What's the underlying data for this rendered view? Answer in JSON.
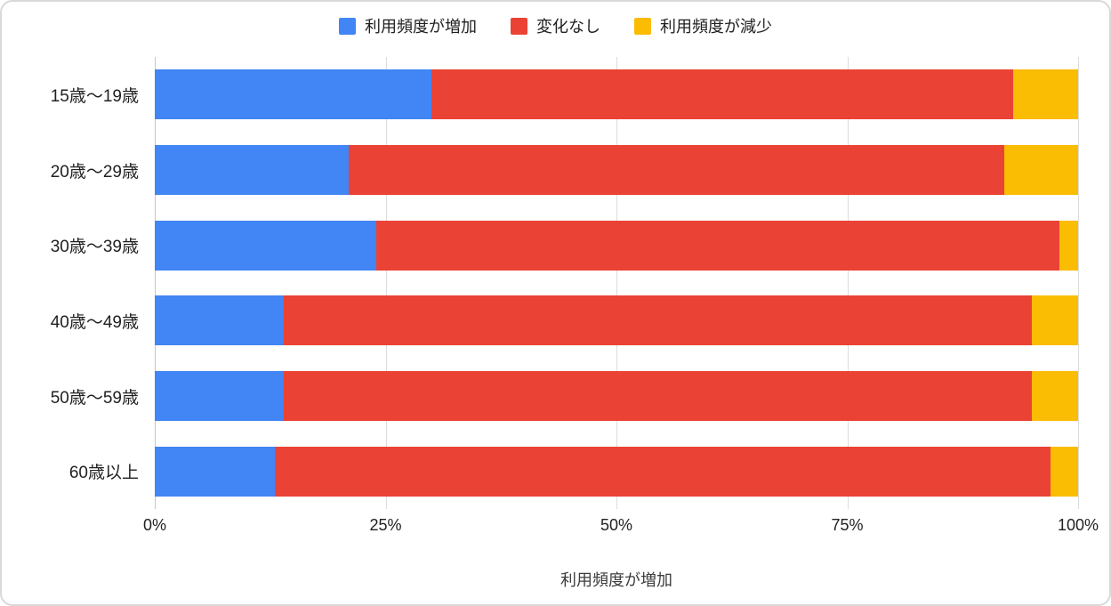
{
  "chart_data": {
    "type": "bar",
    "orientation": "horizontal",
    "stacked": true,
    "percent_stacked": true,
    "title": "",
    "xlabel": "利用頻度が増加",
    "ylabel": "",
    "xlim": [
      0,
      100
    ],
    "grid": true,
    "legend_position": "top",
    "categories": [
      "15歳〜19歳",
      "20歳〜29歳",
      "30歳〜39歳",
      "40歳〜49歳",
      "50歳〜59歳",
      "60歳以上"
    ],
    "series": [
      {
        "name": "利用頻度が増加",
        "color": "#4285F4",
        "values": [
          30,
          21,
          24,
          14,
          14,
          13
        ]
      },
      {
        "name": "変化なし",
        "color": "#EA4335",
        "values": [
          63,
          71,
          74,
          81,
          81,
          84
        ]
      },
      {
        "name": "利用頻度が減少",
        "color": "#FBBC04",
        "values": [
          7,
          8,
          2,
          5,
          5,
          3
        ]
      }
    ],
    "x_ticks": [
      {
        "label": "0%",
        "value": 0
      },
      {
        "label": "25%",
        "value": 25
      },
      {
        "label": "50%",
        "value": 50
      },
      {
        "label": "75%",
        "value": 75
      },
      {
        "label": "100%",
        "value": 100
      }
    ]
  },
  "colors": {
    "background": "#ffffff",
    "card_border": "#d9d9d9",
    "gridline": "#dadce0",
    "baseline": "#c7c7c7",
    "text": "#212121"
  }
}
